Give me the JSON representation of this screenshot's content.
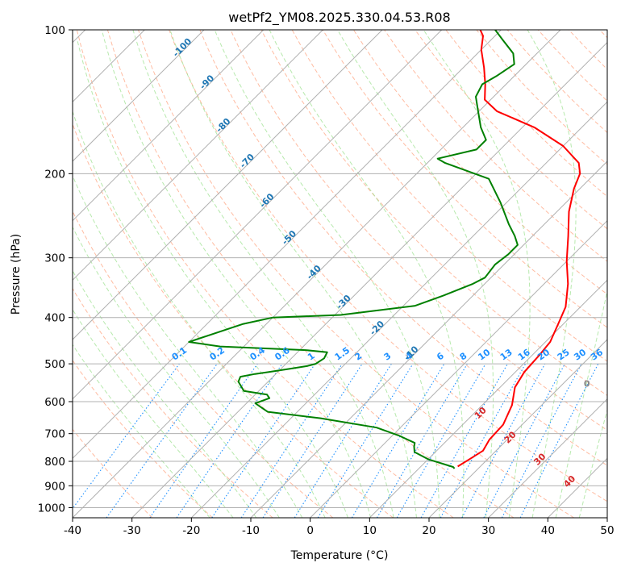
{
  "chart_data": {
    "type": "line",
    "title": "wetPf2_YM08.2025.330.04.53.R08",
    "xlabel": "Temperature (°C)",
    "ylabel": "Pressure (hPa)",
    "xlim": [
      -40,
      50
    ],
    "ylim": [
      1050,
      100
    ],
    "y_scale": "log",
    "skew": true,
    "grid": true,
    "x_ticks": [
      "-40",
      "-30",
      "-20",
      "-10",
      "0",
      "10",
      "20",
      "30",
      "40",
      "50"
    ],
    "y_ticks": [
      "100",
      "200",
      "300",
      "400",
      "500",
      "600",
      "700",
      "800",
      "900",
      "1000"
    ],
    "colors": {
      "temperature": "#ff0000",
      "dewpoint": "#008000",
      "isotherm_labels": "#1f77b4",
      "mixing_ratio": "#1e90ff",
      "moist_adiabats": "#d62728",
      "isotherms": "#b0b0b0",
      "dry_adiabats": "#ffa07a",
      "moist_adiabat_lines": "#98df8a"
    },
    "isotherm_labels": [
      {
        "text": "-100",
        "t": -100,
        "p": 110
      },
      {
        "text": "-90",
        "t": -90,
        "p": 130
      },
      {
        "text": "-80",
        "t": -80,
        "p": 160
      },
      {
        "text": "-70",
        "t": -70,
        "p": 190
      },
      {
        "text": "-60",
        "t": -60,
        "p": 230
      },
      {
        "text": "-50",
        "t": -50,
        "p": 275
      },
      {
        "text": "-40",
        "t": -40,
        "p": 325
      },
      {
        "text": "-30",
        "t": -30,
        "p": 375
      },
      {
        "text": "-20",
        "t": -20,
        "p": 425
      },
      {
        "text": "-10",
        "t": -10,
        "p": 480
      }
    ],
    "mixing_ratio_labels": [
      "0.1",
      "0.2",
      "0.4",
      "0.6",
      "1",
      "1.5",
      "2",
      "3",
      "4",
      "6",
      "8",
      "10",
      "13",
      "16",
      "20",
      "25",
      "30",
      "36"
    ],
    "zero_label": "0",
    "moist_labels": [
      "10",
      "20",
      "30",
      "40"
    ],
    "series": [
      {
        "name": "Temperature",
        "points": [
          [
            16.2,
            820
          ],
          [
            17.0,
            790
          ],
          [
            17.8,
            760
          ],
          [
            17.0,
            720
          ],
          [
            16.8,
            670
          ],
          [
            15.0,
            610
          ],
          [
            12.5,
            560
          ],
          [
            11.5,
            520
          ],
          [
            11.2,
            480
          ],
          [
            10.8,
            450
          ],
          [
            9.0,
            410
          ],
          [
            7.5,
            380
          ],
          [
            4.0,
            340
          ],
          [
            0.0,
            305
          ],
          [
            -4.0,
            270
          ],
          [
            -8.0,
            240
          ],
          [
            -11.0,
            215
          ],
          [
            -12.5,
            200
          ],
          [
            -14.5,
            190
          ],
          [
            -20.0,
            175
          ],
          [
            -28.0,
            160
          ],
          [
            -37.0,
            148
          ],
          [
            -41.0,
            140
          ],
          [
            -43.5,
            130
          ],
          [
            -46.5,
            120
          ],
          [
            -50.0,
            110
          ],
          [
            -52.0,
            103
          ],
          [
            -53.5,
            100
          ]
        ]
      },
      {
        "name": "Dewpoint",
        "points": [
          [
            16.0,
            828
          ],
          [
            15.5,
            822
          ],
          [
            10.0,
            792
          ],
          [
            6.5,
            765
          ],
          [
            5.5,
            745
          ],
          [
            5.0,
            732
          ],
          [
            1.0,
            706
          ],
          [
            -4.0,
            680
          ],
          [
            -15.0,
            650
          ],
          [
            -25.0,
            630
          ],
          [
            -28.5,
            605
          ],
          [
            -27.0,
            590
          ],
          [
            -28.0,
            580
          ],
          [
            -32.5,
            570
          ],
          [
            -35.0,
            545
          ],
          [
            -35.5,
            532
          ],
          [
            -33.5,
            525
          ],
          [
            -31.5,
            520
          ],
          [
            -28.5,
            512
          ],
          [
            -26.0,
            505
          ],
          [
            -25.0,
            500
          ],
          [
            -24.5,
            487
          ],
          [
            -25.0,
            473
          ],
          [
            -29.0,
            468
          ],
          [
            -44.0,
            460
          ],
          [
            -50.0,
            450
          ],
          [
            -44.0,
            413
          ],
          [
            -40.0,
            400
          ],
          [
            -29.0,
            395
          ],
          [
            -18.0,
            378
          ],
          [
            -15.0,
            360
          ],
          [
            -12.0,
            340
          ],
          [
            -11.0,
            330
          ],
          [
            -11.5,
            310
          ],
          [
            -11.0,
            295
          ],
          [
            -11.0,
            282
          ],
          [
            -13.0,
            270
          ],
          [
            -16.0,
            255
          ],
          [
            -21.0,
            230
          ],
          [
            -27.0,
            205
          ],
          [
            -37.0,
            190
          ],
          [
            -39.0,
            186
          ],
          [
            -34.0,
            178
          ],
          [
            -34.0,
            170
          ],
          [
            -37.0,
            160
          ],
          [
            -41.0,
            145
          ],
          [
            -43.0,
            138
          ],
          [
            -44.0,
            130
          ],
          [
            -43.0,
            125
          ],
          [
            -42.0,
            118
          ],
          [
            -44.0,
            112
          ],
          [
            -48.0,
            105
          ],
          [
            -51.0,
            100
          ]
        ]
      }
    ]
  }
}
